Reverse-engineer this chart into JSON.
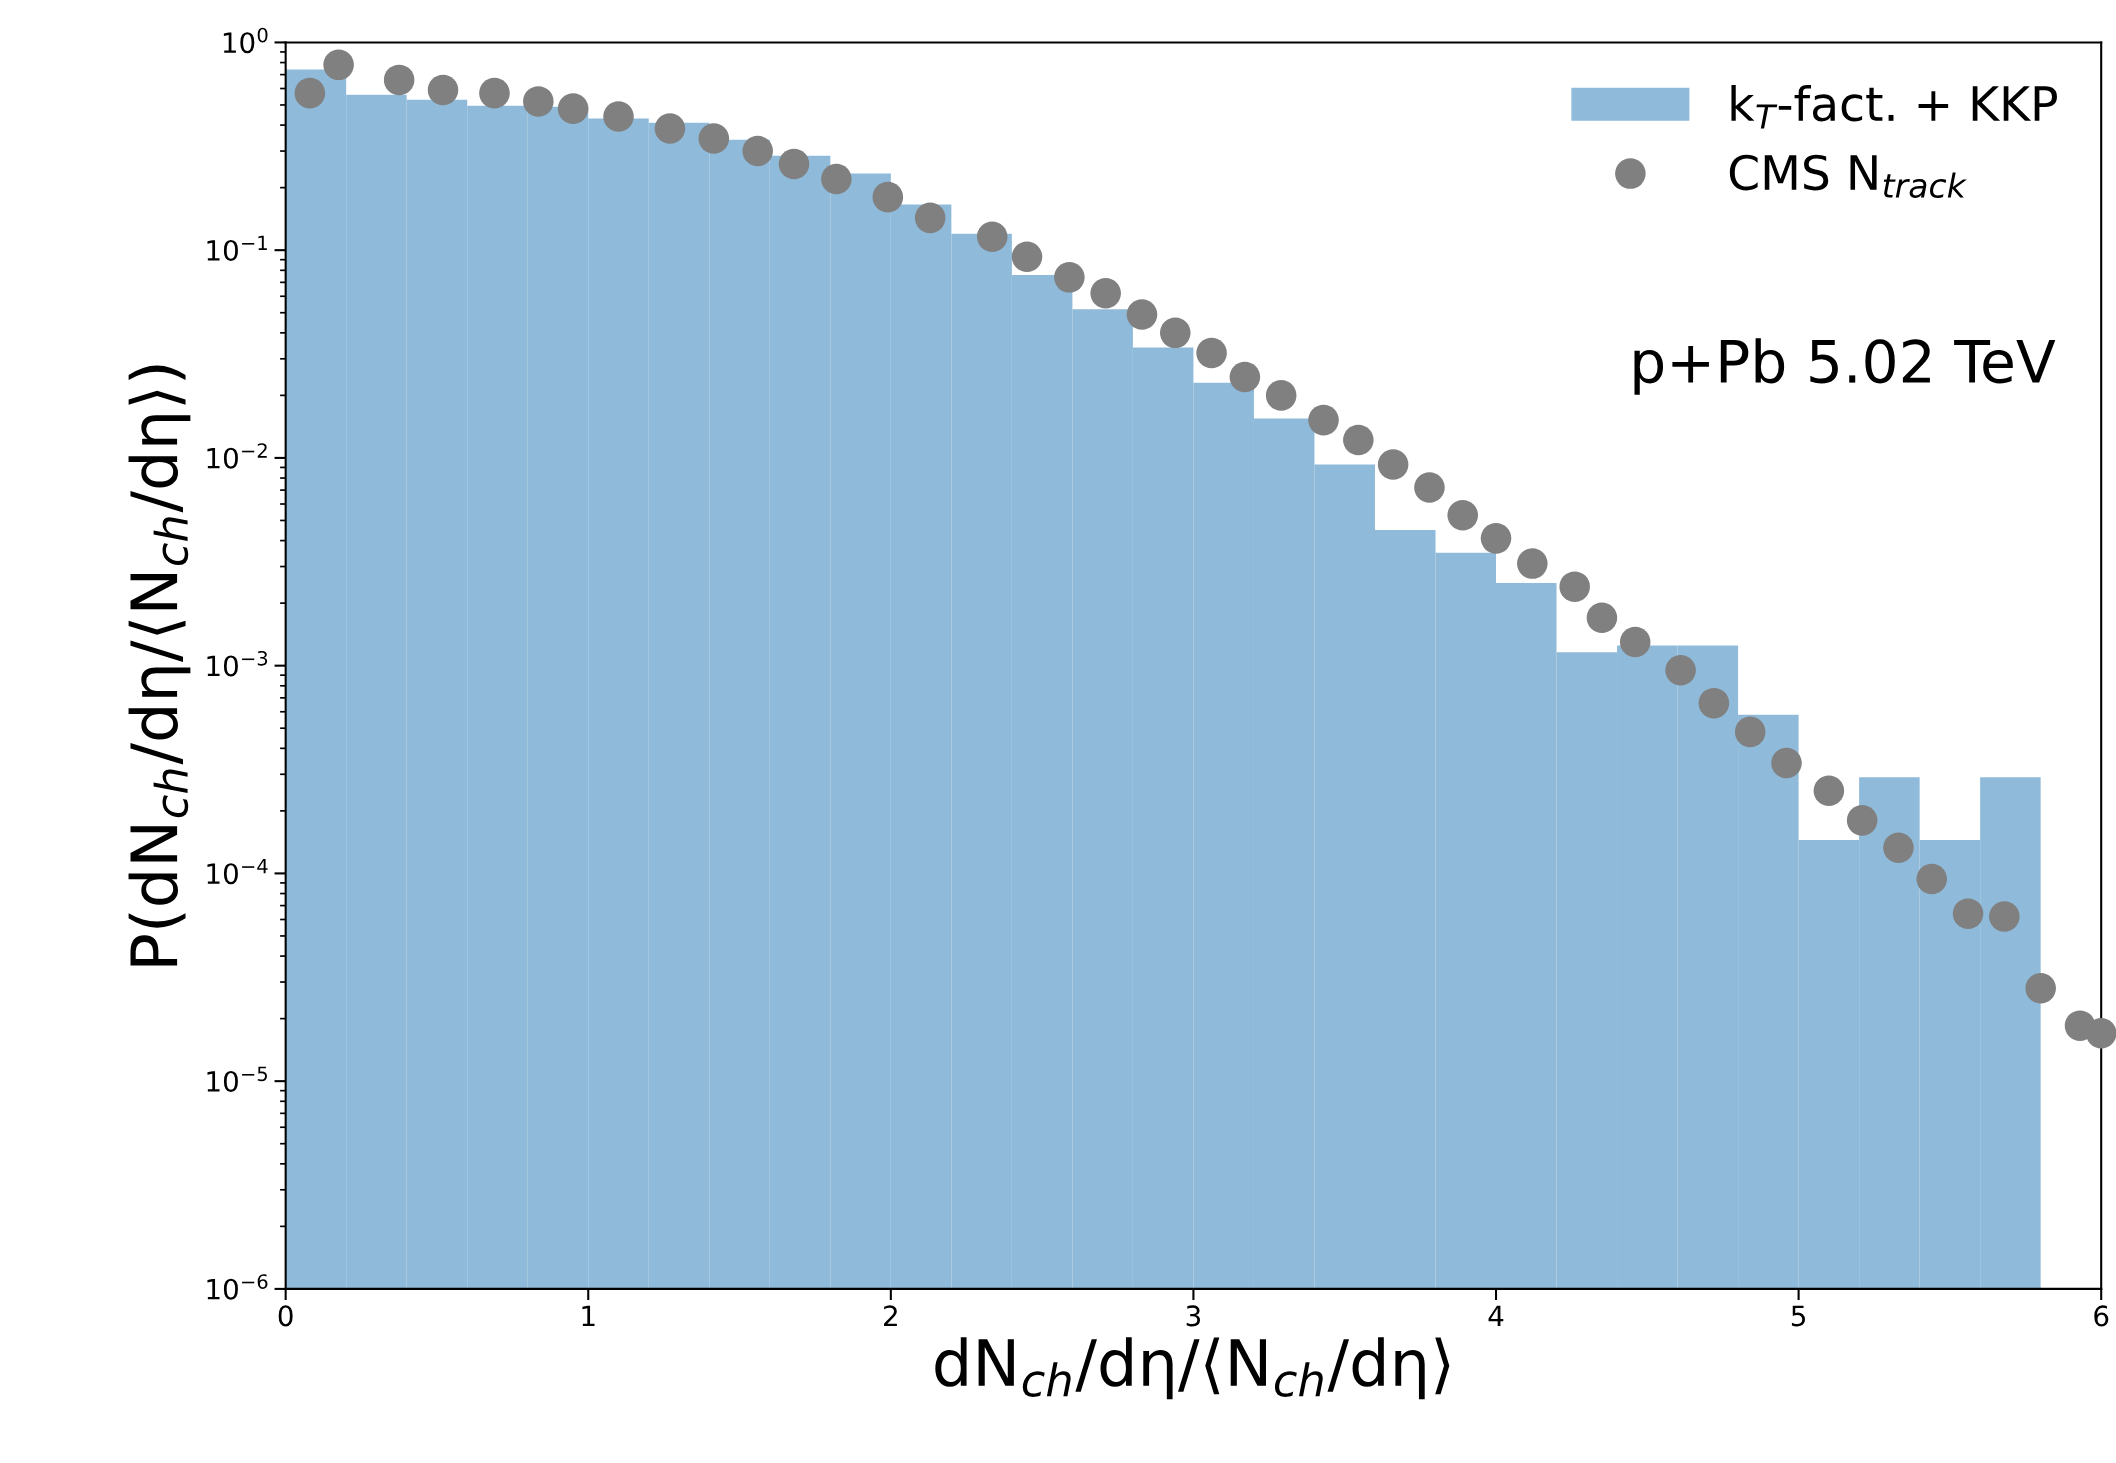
{
  "chart_data": {
    "type": "histogram",
    "xlabel": "dN$_{ch}$/dη/⟨N$_{ch}$/dη⟩",
    "ylabel": "P(dN$_{ch}$/dη/⟨N$_{ch}$/dη⟩)",
    "annotations": [
      "p+Pb 5.02 TeV"
    ],
    "bins": [
      0,
      0.2,
      0.4,
      0.6,
      0.8,
      1.0,
      1.2,
      1.4,
      1.6,
      1.8,
      2.0,
      2.2,
      2.4,
      2.6,
      2.8,
      3.0,
      3.2,
      3.4,
      3.6,
      3.8,
      4.0,
      4.2,
      4.4,
      4.6,
      4.8,
      5.0,
      5.2,
      5.4,
      5.6,
      5.8
    ],
    "series": [
      {
        "type": "histogram",
        "name": "k$_{T}$-fact. + KKP",
        "color": "#8fbad9",
        "values": [
          0.74,
          0.56,
          0.53,
          0.495,
          0.49,
          0.43,
          0.41,
          0.34,
          0.285,
          0.234,
          0.166,
          0.12,
          0.076,
          0.052,
          0.034,
          0.023,
          0.0155,
          0.0093,
          0.0045,
          0.0035,
          0.0025,
          0.00116,
          0.00125,
          0.00125,
          0.00058,
          0.000145,
          0.00029,
          0.000145,
          0.00029
        ]
      },
      {
        "type": "scatter",
        "name": "CMS N$_{track}$",
        "color": "#808080",
        "marker": "circle",
        "x": [
          0.08,
          0.175,
          0.375,
          0.52,
          0.69,
          0.835,
          0.95,
          1.1,
          1.27,
          1.415,
          1.56,
          1.68,
          1.82,
          1.99,
          2.13,
          2.335,
          2.45,
          2.59,
          2.71,
          2.83,
          2.94,
          3.06,
          3.17,
          3.29,
          3.43,
          3.545,
          3.66,
          3.78,
          3.89,
          4.0,
          4.12,
          4.26,
          4.35,
          4.46,
          4.61,
          4.72,
          4.84,
          4.96,
          5.1,
          5.21,
          5.33,
          5.44,
          5.56,
          5.68,
          5.8,
          5.93,
          6.0
        ],
        "values": [
          0.57,
          0.78,
          0.66,
          0.59,
          0.57,
          0.52,
          0.48,
          0.44,
          0.385,
          0.345,
          0.3,
          0.26,
          0.22,
          0.18,
          0.143,
          0.116,
          0.093,
          0.074,
          0.062,
          0.049,
          0.04,
          0.032,
          0.0245,
          0.02,
          0.0152,
          0.0122,
          0.0093,
          0.0072,
          0.0053,
          0.0041,
          0.0031,
          0.0024,
          0.0017,
          0.0013,
          0.00095,
          0.00066,
          0.00048,
          0.00034,
          0.00025,
          0.00018,
          0.000133,
          9.4e-05,
          6.4e-05,
          6.2e-05,
          2.8e-05,
          1.85e-05,
          1.7e-05
        ]
      }
    ],
    "log": "y",
    "xlim": [
      0,
      6
    ],
    "ylim": [
      1e-06,
      1
    ],
    "xticks": [
      0,
      1,
      2,
      3,
      4,
      5,
      6
    ],
    "yticks": [
      {
        "value": 1e-06,
        "label": "10$^{−6}$"
      },
      {
        "value": 1e-05,
        "label": "10$^{−5}$"
      },
      {
        "value": 0.0001,
        "label": "10$^{−4}$"
      },
      {
        "value": 0.001,
        "label": "10$^{−3}$"
      },
      {
        "value": 0.01,
        "label": "10$^{−2}$"
      },
      {
        "value": 0.1,
        "label": "10$^{−1}$"
      },
      {
        "value": 1,
        "label": "10$^{0}$"
      }
    ],
    "legend": "top right",
    "grid": false
  }
}
